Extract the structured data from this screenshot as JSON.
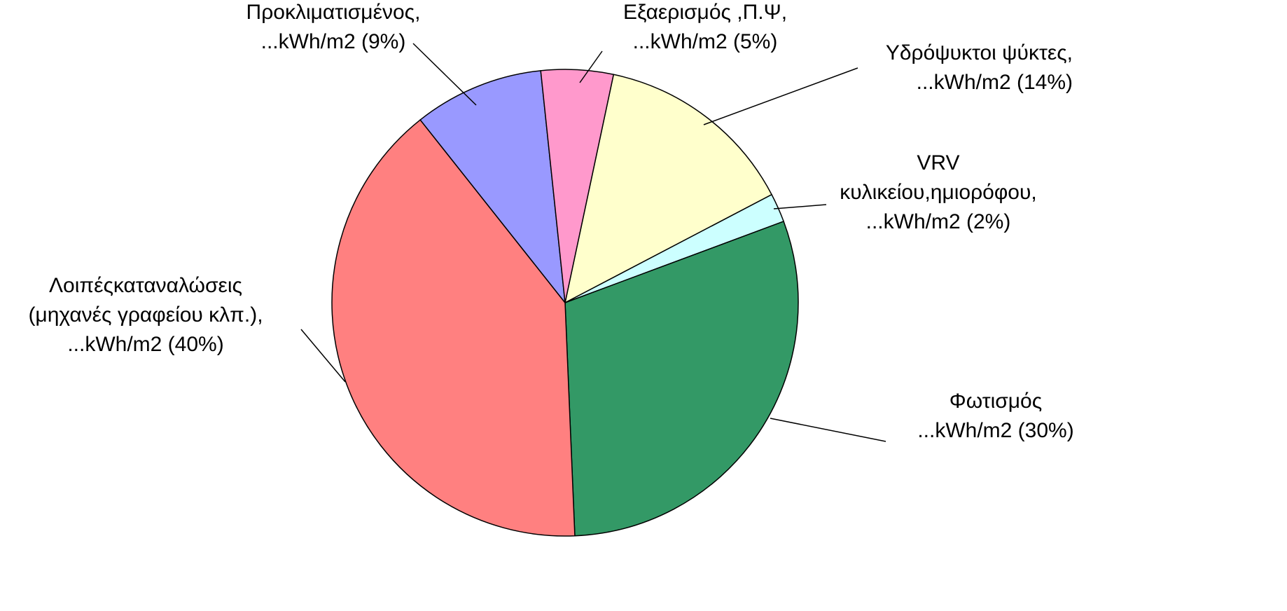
{
  "chart_data": {
    "type": "pie",
    "categories": [
      [
        "Υδρόψυκτοι ψύκτες,"
      ],
      [
        "VRV",
        "κυλικείου,ημιορόφου,"
      ],
      [
        "Φωτισμός"
      ],
      [
        "Λοιπέςκαταναλώσεις",
        "(μηχανές γραφείου κλπ.),"
      ],
      [
        "Προκλιματισμένος,"
      ],
      [
        "Εξαερισμός ,Π.Ψ,"
      ]
    ],
    "values": [
      14,
      2,
      30,
      40,
      9,
      5
    ],
    "value_labels": [
      "...kWh/m2 (14%)",
      "...kWh/m2 (2%)",
      "...kWh/m2 (30%)",
      "...kWh/m2 (40%)",
      "...kWh/m2 (9%)",
      "...kWh/m2 (5%)"
    ],
    "colors": [
      "#ffffcc",
      "#ccffff",
      "#339966",
      "#ff8080",
      "#9999ff",
      "#ff99cc"
    ]
  }
}
